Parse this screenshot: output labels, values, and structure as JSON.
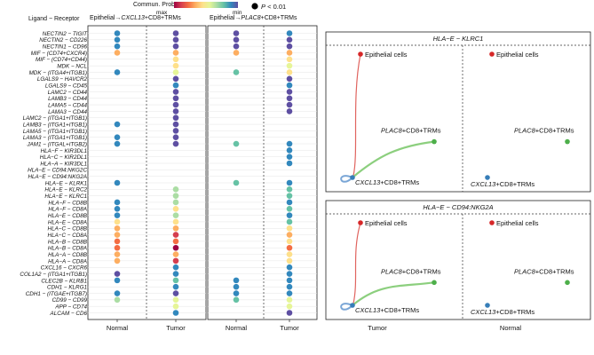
{
  "chart_data": [
    {
      "type": "scatter",
      "kind": "dotplot",
      "legend": {
        "colorbar_title": "Commun. Prob.",
        "colorbar_min_label": "min",
        "colorbar_max_label": "max",
        "colorbar_colors": [
          "#9e0142",
          "#d53e4f",
          "#f46d43",
          "#fdae61",
          "#fee08b",
          "#e6f598",
          "#abdda4",
          "#66c2a5",
          "#3288bd",
          "#5e4fa2"
        ],
        "pvalue_label": "P < 0.01"
      },
      "y_header": "Ligand − Receptor",
      "ligand_receptor_pairs": [
        "NECTIN2 − TIGIT",
        "NECTIN2 − CD226",
        "NECTIN1 − CD96",
        "MIF − (CD74+CXCR4)",
        "MIF − (CD74+CD44)",
        "MDK − NCL",
        "MDK − (ITGA4+ITGB1)",
        "LGALS9 − HAVCR2",
        "LGALS9 − CD45",
        "LAMC2 − CD44",
        "LAMB3 − CD44",
        "LAMA5 − CD44",
        "LAMA3 − CD44",
        "LAMC2 − (ITGA1+ITGB1)",
        "LAMB3 − (ITGA1+ITGB1)",
        "LAMA5 − (ITGA1+ITGB1)",
        "LAMA3 − (ITGA1+ITGB1)",
        "JAM1 − (ITGAL+ITGB2)",
        "HLA−F − KIR3DL1",
        "HLA−C − KIR2DL1",
        "HLA−A − KIR3DL1",
        "HLA−E − CD94:NKG2C",
        "HLA−E − CD94:NKG2A",
        "HLA−E − KLRK1",
        "HLA−E − KLRC2",
        "HLA−E − KLRC1",
        "HLA−F − CD8B",
        "HLA−F − CD8A",
        "HLA−E − CD8B",
        "HLA−E − CD8A",
        "HLA−C − CD8B",
        "HLA−C − CD8A",
        "HLA−B − CD8B",
        "HLA−B − CD8A",
        "HLA−A − CD8B",
        "HLA−A − CD8A",
        "CXCL16 − CXCR6",
        "COL1A2 − (ITGA1+ITGB1)",
        "CLEC2B − KLRB1",
        "CDH1 − KLRG1",
        "CDH1 − (ITGAE+ITGB7)",
        "CD99 − CD99",
        "APP − CD74",
        "ALCAM − CD6"
      ],
      "panels": [
        {
          "title_prefix": "Epithelial",
          "arrow": "→",
          "title_italic": "CXCL13",
          "title_suffix": "+CD8+TRMs",
          "conditions": [
            "Normal",
            "Tumor"
          ],
          "color_index_by_condition": {
            "Normal": [
              8,
              8,
              8,
              3,
              null,
              null,
              8,
              null,
              null,
              null,
              null,
              null,
              null,
              null,
              8,
              null,
              8,
              8,
              null,
              null,
              null,
              null,
              null,
              8,
              null,
              null,
              8,
              8,
              8,
              4,
              3,
              3,
              2,
              2,
              3,
              3,
              null,
              9,
              8,
              null,
              8,
              6,
              null,
              null
            ],
            "Tumor": [
              9,
              9,
              9,
              3,
              4,
              4,
              5,
              9,
              8,
              9,
              9,
              9,
              9,
              9,
              9,
              9,
              9,
              9,
              null,
              null,
              null,
              null,
              null,
              null,
              6,
              6,
              6,
              4,
              6,
              4,
              3,
              1,
              2,
              0,
              3,
              1,
              8,
              8,
              7,
              8,
              9,
              5,
              5,
              8
            ]
          }
        },
        {
          "title_prefix": "Epithelial",
          "arrow": "→",
          "title_italic": "PLAC8",
          "title_suffix": "+CD8+TRMs",
          "conditions": [
            "Normal",
            "Tumor"
          ],
          "color_index_by_condition": {
            "Normal": [
              9,
              9,
              9,
              3,
              null,
              null,
              7,
              null,
              null,
              null,
              null,
              null,
              null,
              null,
              null,
              null,
              null,
              7,
              null,
              null,
              null,
              null,
              null,
              7,
              null,
              null,
              null,
              null,
              null,
              null,
              null,
              null,
              null,
              null,
              null,
              null,
              null,
              null,
              8,
              8,
              8,
              7,
              null,
              null
            ],
            "Tumor": [
              8,
              9,
              9,
              3,
              4,
              5,
              4,
              9,
              8,
              9,
              9,
              9,
              9,
              null,
              null,
              null,
              null,
              8,
              8,
              8,
              8,
              null,
              null,
              8,
              7,
              7,
              8,
              7,
              8,
              7,
              4,
              3,
              4,
              2,
              4,
              4,
              8,
              8,
              8,
              8,
              8,
              5,
              5,
              9
            ]
          }
        }
      ]
    },
    {
      "type": "network",
      "panels": [
        {
          "title": "HLA−E − KLRC1",
          "xlabel": "Tumor",
          "nodes_tumor": [
            "Epithelial cells",
            "PLAC8+CD8+TRMs",
            "CXCL13+CD8+TRMs"
          ],
          "nodes_normal": [
            "Epithelial cells",
            "PLAC8+CD8+TRMs",
            "CXCL13+CD8+TRMs"
          ],
          "italic_prefixes": [
            "PLAC8",
            "CXCL13"
          ],
          "edges_tumor": [
            {
              "from": "Epithelial cells",
              "to": "CXCL13+CD8+TRMs",
              "color": "#e0645f"
            },
            {
              "from": "PLAC8+CD8+TRMs",
              "to": "CXCL13+CD8+TRMs",
              "color": "#8ccf7e"
            },
            {
              "from": "CXCL13+CD8+TRMs",
              "to": "CXCL13+CD8+TRMs",
              "color": "#7aa6d6"
            }
          ]
        },
        {
          "title": "HLA−E − CD94:NKG2A",
          "xlabel_tumor": "Tumor",
          "xlabel_normal": "Normal",
          "nodes_tumor": [
            "Epithelial cells",
            "PLAC8+CD8+TRMs",
            "CXCL13+CD8+TRMs"
          ],
          "nodes_normal": [
            "Epithelial cells",
            "PLAC8+CD8+TRMs",
            "CXCL13+CD8+TRMs"
          ],
          "italic_prefixes": [
            "PLAC8",
            "CXCL13"
          ],
          "edges_tumor": [
            {
              "from": "Epithelial cells",
              "to": "CXCL13+CD8+TRMs",
              "color": "#e0645f"
            },
            {
              "from": "PLAC8+CD8+TRMs",
              "to": "CXCL13+CD8+TRMs",
              "color": "#8ccf7e"
            },
            {
              "from": "CXCL13+CD8+TRMs",
              "to": "CXCL13+CD8+TRMs",
              "color": "#7aa6d6"
            }
          ]
        }
      ],
      "node_colors": {
        "Epithelial cells": "#d62728",
        "PLAC8+CD8+TRMs": "#4daf4a",
        "CXCL13+CD8+TRMs": "#377eb8"
      }
    }
  ]
}
